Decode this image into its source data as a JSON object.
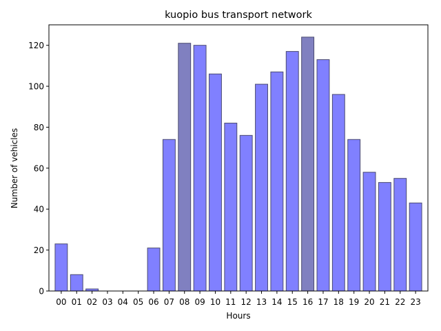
{
  "chart_data": {
    "type": "bar",
    "title": "kuopio bus transport network",
    "xlabel": "Hours",
    "ylabel": "Number of vehicles",
    "categories": [
      "00",
      "01",
      "02",
      "03",
      "04",
      "05",
      "06",
      "07",
      "08",
      "09",
      "10",
      "11",
      "12",
      "13",
      "14",
      "15",
      "16",
      "17",
      "18",
      "19",
      "20",
      "21",
      "22",
      "23"
    ],
    "values": [
      23,
      8,
      1,
      0,
      0,
      0,
      21,
      74,
      121,
      120,
      106,
      82,
      76,
      101,
      107,
      117,
      124,
      113,
      96,
      74,
      58,
      53,
      55,
      43
    ],
    "highlighted_categories": [
      "08",
      "16"
    ],
    "ylim": [
      0,
      130
    ],
    "yticks": [
      0,
      20,
      40,
      60,
      80,
      100,
      120
    ],
    "grid": false,
    "colors": {
      "bar_fill": "#8080ff",
      "bar_highlight_fill": "#8080c0",
      "bar_edge": "#4a4a70",
      "axis": "#000000"
    }
  }
}
